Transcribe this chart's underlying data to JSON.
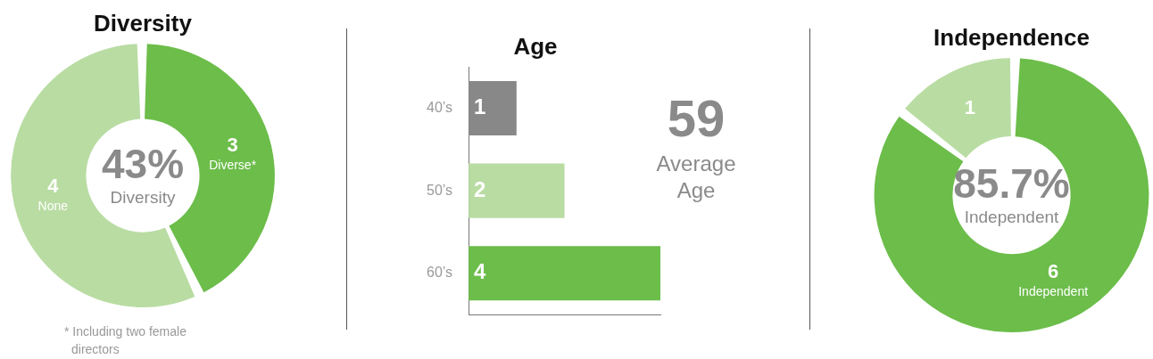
{
  "chart_data": [
    {
      "type": "donut",
      "title": "Diversity",
      "categories": [
        "Diverse*",
        "None"
      ],
      "values": [
        3,
        4
      ],
      "colors": [
        "#6cbd4a",
        "#b9dca3"
      ],
      "data_labels": true,
      "legend": false,
      "annotations": [
        "43%",
        "Diversity",
        "* Including two female directors"
      ]
    },
    {
      "type": "bar",
      "orientation": "horizontal",
      "title": "Age",
      "categories": [
        "40’s",
        "50’s",
        "60’s"
      ],
      "values": [
        1,
        2,
        4
      ],
      "colors": [
        "#888888",
        "#b9dca3",
        "#6cbd4a"
      ],
      "data_labels": true,
      "legend": false,
      "grid": false,
      "tick_labels": "y",
      "annotations": [
        "59",
        "Average Age"
      ]
    },
    {
      "type": "donut",
      "title": "Independence",
      "categories": [
        "Independent",
        null
      ],
      "values": [
        6,
        1
      ],
      "colors": [
        "#6cbd4a",
        "#b9dca3"
      ],
      "data_labels": true,
      "legend": false,
      "annotations": [
        "85.7%",
        "Independent"
      ]
    }
  ]
}
